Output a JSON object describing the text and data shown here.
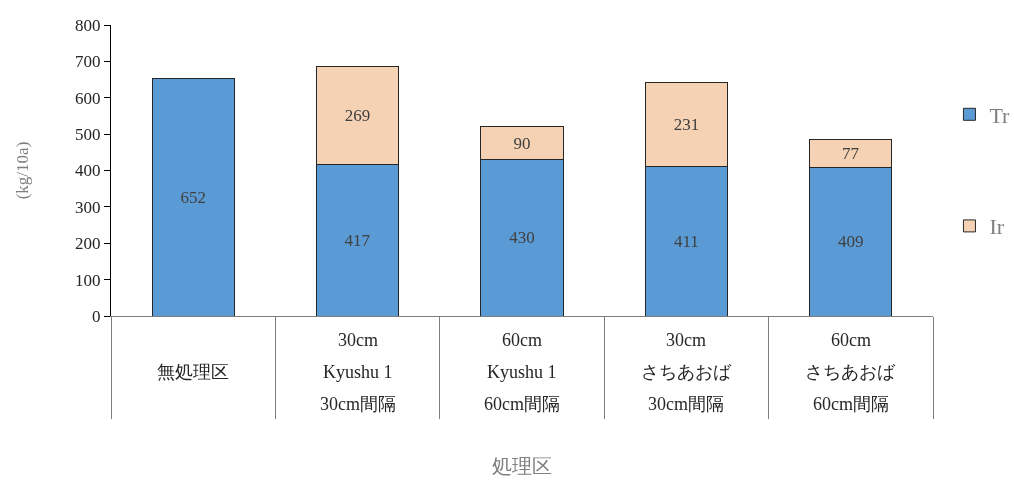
{
  "chart_data": {
    "type": "bar",
    "stacked": true,
    "categories": [
      "無処理区",
      "30cm\nKyushu 1\n30cm間隔",
      "60cm\nKyushu 1\n60cm間隔",
      "30cm\nさちあおば\n30cm間隔",
      "60cm\nさちあおば\n60cm間隔"
    ],
    "series": [
      {
        "name": "Tr",
        "color": "#5b9bd5",
        "values": [
          652,
          417,
          430,
          411,
          409
        ]
      },
      {
        "name": "Ir",
        "color": "#f6d2b4",
        "values": [
          null,
          269,
          90,
          231,
          77
        ]
      }
    ],
    "xlabel": "処理区",
    "ylabel": "(kg/10a)",
    "ylim": [
      0,
      800
    ],
    "yticks": [
      0,
      100,
      200,
      300,
      400,
      500,
      600,
      700,
      800
    ],
    "data_labels": true,
    "legend": "right"
  }
}
